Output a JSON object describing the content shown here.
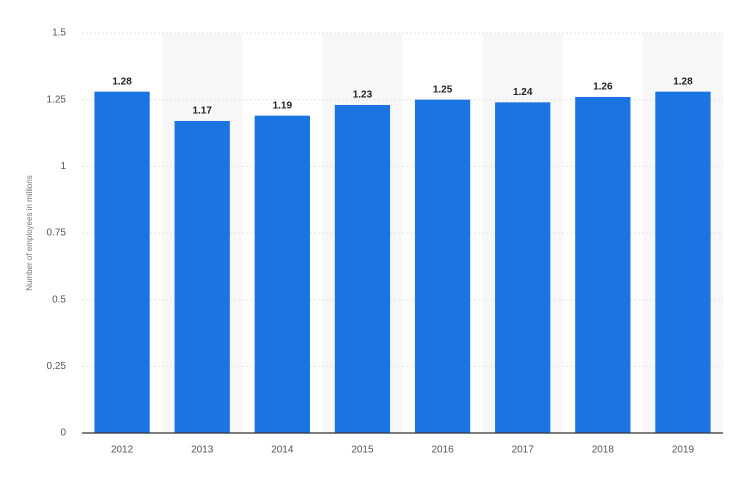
{
  "chart_data": {
    "type": "bar",
    "y_axis_label": "Number of employees in millions",
    "categories": [
      "2012",
      "2013",
      "2014",
      "2015",
      "2016",
      "2017",
      "2018",
      "2019"
    ],
    "values": [
      1.28,
      1.17,
      1.19,
      1.23,
      1.25,
      1.24,
      1.26,
      1.28
    ],
    "color": "#1a74e2",
    "ylim": [
      0,
      1.5
    ],
    "yticks": [
      0,
      0.25,
      0.5,
      0.75,
      1,
      1.25,
      1.5
    ],
    "grid": true
  }
}
